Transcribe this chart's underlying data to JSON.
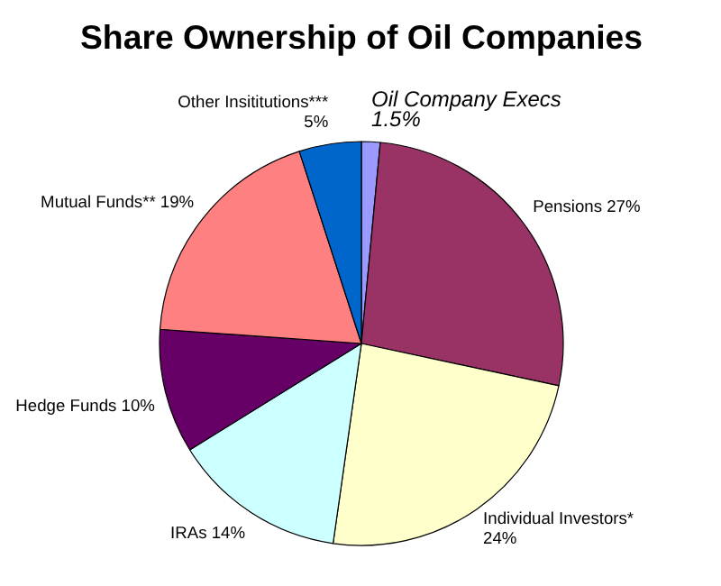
{
  "chart_data": {
    "type": "pie",
    "title": "Share Ownership of Oil Companies",
    "categories": [
      "Oil Company Execs",
      "Pensions",
      "Individual Investors*",
      "IRAs",
      "Hedge Funds",
      "Mutual Funds**",
      "Other Insititutions***"
    ],
    "values": [
      1.5,
      27,
      24,
      14,
      10,
      19,
      5
    ],
    "value_labels": [
      "1.5%",
      "27%",
      "24%",
      "14%",
      "10%",
      "19%",
      "5%"
    ],
    "colors": [
      "#9999ff",
      "#993366",
      "#ffffcc",
      "#ccffff",
      "#660066",
      "#ff8080",
      "#0066cc"
    ]
  }
}
